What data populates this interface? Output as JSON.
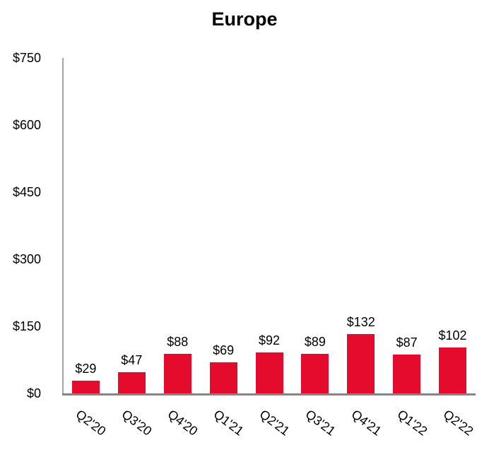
{
  "chart_data": {
    "type": "bar",
    "title": "Europe",
    "categories": [
      "Q2'20",
      "Q3'20",
      "Q4'20",
      "Q1'21",
      "Q2'21",
      "Q3'21",
      "Q4'21",
      "Q1'22",
      "Q2'22"
    ],
    "values": [
      29,
      47,
      88,
      69,
      92,
      89,
      132,
      87,
      102
    ],
    "data_labels": [
      "$29",
      "$47",
      "$88",
      "$69",
      "$92",
      "$89",
      "$132",
      "$87",
      "$102"
    ],
    "y_ticks": [
      "$0",
      "$150",
      "$300",
      "$450",
      "$600",
      "$750"
    ],
    "ylim": [
      0,
      750
    ],
    "xlabel": "",
    "ylabel": "",
    "grid": "off",
    "legend": "none",
    "bar_color": "#e40b2c",
    "y_axis_color": "#a6a6a6",
    "x_axis_color": "#858585",
    "text_color": "#000000"
  }
}
